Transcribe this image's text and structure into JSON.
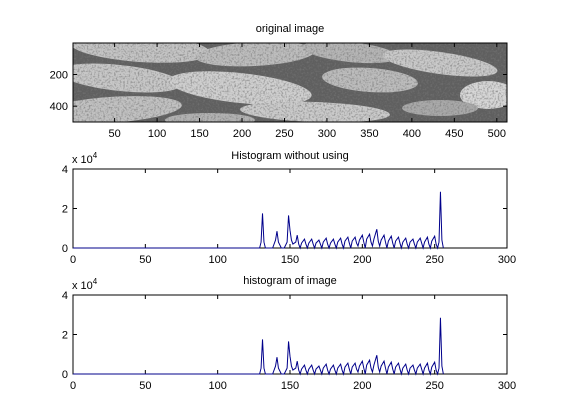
{
  "chart_data": [
    {
      "type": "image",
      "title": "original image",
      "x_ticks": [
        50,
        100,
        150,
        200,
        250,
        300,
        350,
        400,
        450,
        500
      ],
      "y_ticks": [
        200,
        400
      ],
      "xlim": [
        1,
        512
      ],
      "ylim": [
        1,
        500
      ],
      "content": "grayscale photograph of elongated speckled seeds"
    },
    {
      "type": "line",
      "title": "Histogram without using",
      "exponent_label": "x 10",
      "exponent_power": "4",
      "x_ticks": [
        0,
        50,
        100,
        150,
        200,
        250,
        300
      ],
      "y_ticks": [
        0,
        2,
        4
      ],
      "xlim": [
        0,
        300
      ],
      "ylim": [
        0,
        40000
      ],
      "series_color": "#00008b",
      "x": [
        0,
        129,
        130,
        131,
        132,
        133,
        138,
        140,
        141,
        142,
        144,
        146,
        148,
        149,
        150,
        151,
        152,
        154,
        155,
        156,
        157,
        158,
        160,
        161,
        162,
        163,
        165,
        166,
        167,
        168,
        170,
        171,
        172,
        173,
        175,
        176,
        177,
        178,
        180,
        181,
        182,
        183,
        185,
        186,
        187,
        188,
        190,
        191,
        192,
        193,
        195,
        196,
        197,
        198,
        200,
        201,
        202,
        203,
        205,
        206,
        207,
        208,
        210,
        211,
        212,
        213,
        215,
        216,
        217,
        218,
        220,
        221,
        222,
        223,
        225,
        226,
        227,
        228,
        230,
        231,
        232,
        233,
        235,
        236,
        237,
        238,
        240,
        241,
        242,
        243,
        245,
        246,
        247,
        248,
        250,
        251,
        252,
        253,
        254,
        255,
        256
      ],
      "y": [
        0,
        0,
        3000,
        17500,
        3000,
        0,
        0,
        4000,
        8500,
        3000,
        0,
        0,
        3000,
        16500,
        9000,
        4000,
        2000,
        3000,
        6500,
        2000,
        0,
        2500,
        4500,
        2000,
        0,
        2500,
        4500,
        2000,
        0,
        2500,
        4000,
        2000,
        0,
        3000,
        5000,
        2000,
        0,
        2500,
        4500,
        2000,
        0,
        3000,
        5000,
        2000,
        0,
        3500,
        5500,
        2500,
        0,
        3500,
        5500,
        2500,
        1000,
        4000,
        6500,
        3000,
        0,
        4500,
        7000,
        3000,
        1000,
        4500,
        9500,
        3500,
        1000,
        4000,
        6500,
        3000,
        0,
        3500,
        6000,
        2500,
        0,
        3500,
        5500,
        2500,
        0,
        3000,
        5000,
        2000,
        0,
        3000,
        4500,
        2000,
        0,
        3000,
        5000,
        2500,
        0,
        3000,
        5500,
        2000,
        0,
        3500,
        6000,
        2000,
        0,
        3000,
        28500,
        4000,
        0
      ]
    },
    {
      "type": "line",
      "title": "histogram of image",
      "exponent_label": "x 10",
      "exponent_power": "4",
      "x_ticks": [
        0,
        50,
        100,
        150,
        200,
        250,
        300
      ],
      "y_ticks": [
        0,
        2,
        4
      ],
      "xlim": [
        0,
        300
      ],
      "ylim": [
        0,
        40000
      ],
      "series_color": "#00008b",
      "x": [
        0,
        129,
        130,
        131,
        132,
        133,
        138,
        140,
        141,
        142,
        144,
        146,
        148,
        149,
        150,
        151,
        152,
        154,
        155,
        156,
        157,
        158,
        160,
        161,
        162,
        163,
        165,
        166,
        167,
        168,
        170,
        171,
        172,
        173,
        175,
        176,
        177,
        178,
        180,
        181,
        182,
        183,
        185,
        186,
        187,
        188,
        190,
        191,
        192,
        193,
        195,
        196,
        197,
        198,
        200,
        201,
        202,
        203,
        205,
        206,
        207,
        208,
        210,
        211,
        212,
        213,
        215,
        216,
        217,
        218,
        220,
        221,
        222,
        223,
        225,
        226,
        227,
        228,
        230,
        231,
        232,
        233,
        235,
        236,
        237,
        238,
        240,
        241,
        242,
        243,
        245,
        246,
        247,
        248,
        250,
        251,
        252,
        253,
        254,
        255,
        256
      ],
      "y": [
        0,
        0,
        3000,
        17500,
        3000,
        0,
        0,
        4000,
        8500,
        3000,
        0,
        0,
        3000,
        16500,
        9000,
        4000,
        2000,
        3000,
        6500,
        2000,
        0,
        2500,
        4500,
        2000,
        0,
        2500,
        4500,
        2000,
        0,
        2500,
        4000,
        2000,
        0,
        3000,
        5000,
        2000,
        0,
        2500,
        4500,
        2000,
        0,
        3000,
        5000,
        2000,
        0,
        3500,
        5500,
        2500,
        0,
        3500,
        5500,
        2500,
        1000,
        4000,
        6500,
        3000,
        0,
        4500,
        7000,
        3000,
        1000,
        4500,
        9500,
        3500,
        1000,
        4000,
        6500,
        3000,
        0,
        3500,
        6000,
        2500,
        0,
        3500,
        5500,
        2500,
        0,
        3000,
        5000,
        2000,
        0,
        3000,
        4500,
        2000,
        0,
        3000,
        5000,
        2500,
        0,
        3000,
        5500,
        2000,
        0,
        3500,
        6000,
        2000,
        0,
        3000,
        28500,
        4000,
        0
      ]
    }
  ]
}
